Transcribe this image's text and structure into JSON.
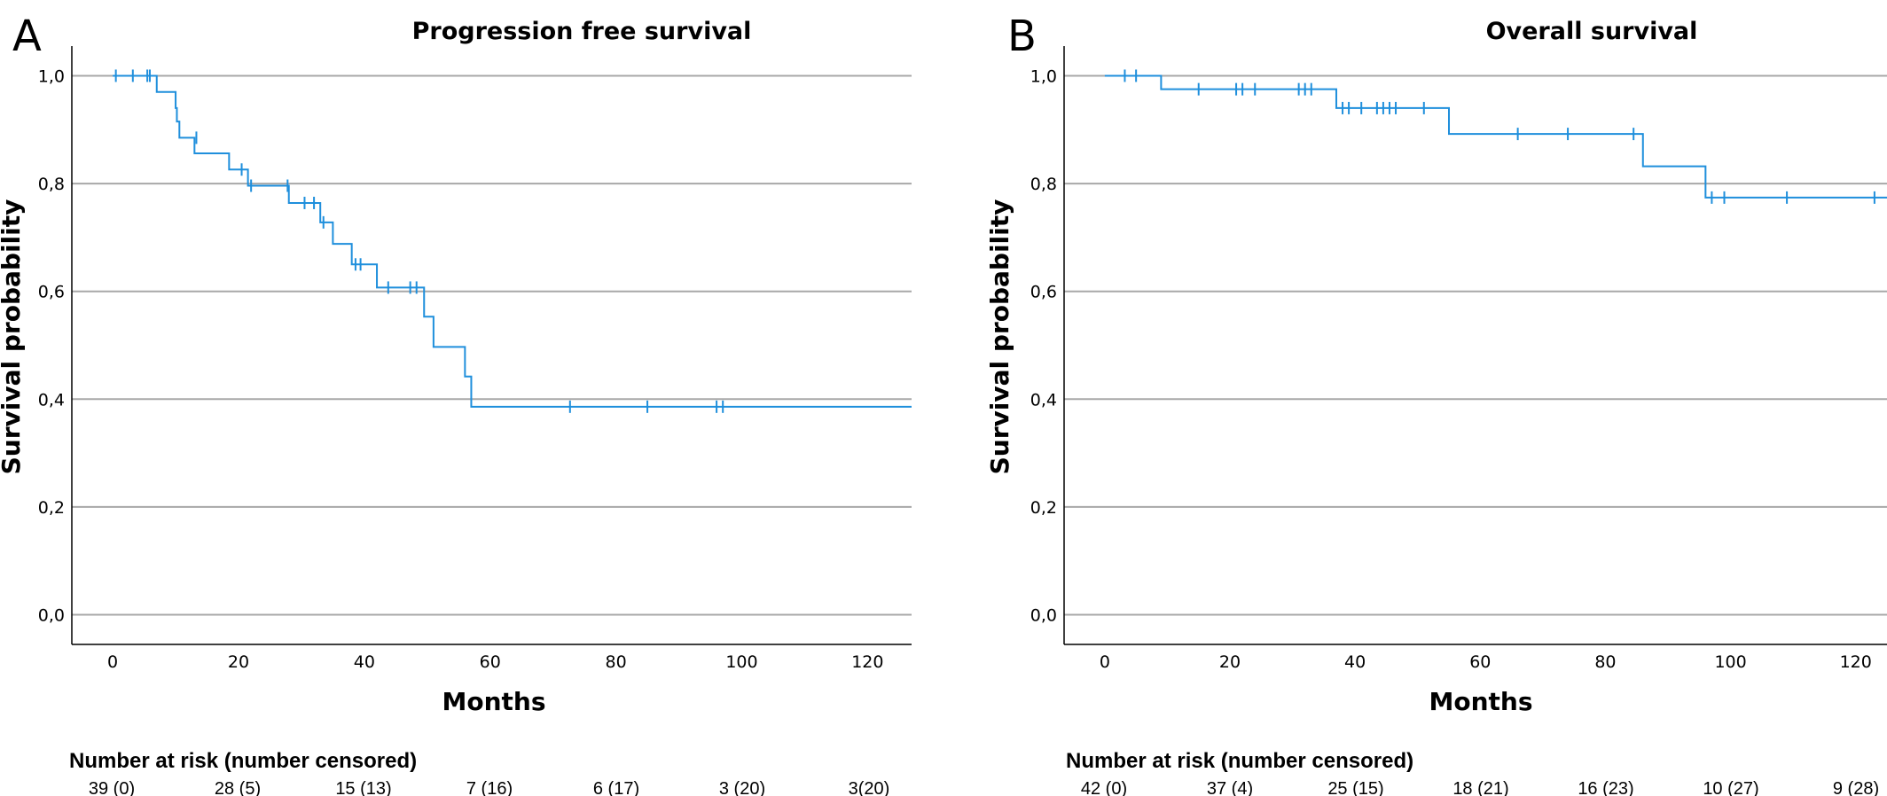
{
  "chart_data": [
    {
      "type": "line",
      "panel": "A",
      "title": "Progression free survival",
      "xlabel": "Months",
      "ylabel": "Survival probability",
      "xlim": [
        -6.5,
        127
      ],
      "ylim": [
        -0.055,
        1.055
      ],
      "x_ticks": [
        0,
        20,
        40,
        60,
        80,
        100,
        120
      ],
      "x_tick_labels": [
        "0",
        "20",
        "40",
        "60",
        "80",
        "100",
        "120"
      ],
      "y_ticks": [
        0,
        0.2,
        0.4,
        0.6,
        0.8,
        1.0
      ],
      "y_tick_labels": [
        "0,0",
        "0,2",
        "0,4",
        "0,6",
        "0,8",
        "1,0"
      ],
      "grid": "horizontal",
      "color": "#1f8fdc",
      "series": [
        {
          "steps": [
            [
              0,
              1.0
            ],
            [
              7,
              0.97
            ],
            [
              10,
              0.94
            ],
            [
              10.2,
              0.915
            ],
            [
              10.6,
              0.885
            ],
            [
              13,
              0.856
            ],
            [
              18.5,
              0.826
            ],
            [
              21.5,
              0.796
            ],
            [
              28,
              0.764
            ],
            [
              33,
              0.728
            ],
            [
              35,
              0.688
            ],
            [
              38,
              0.65
            ],
            [
              42,
              0.607
            ],
            [
              49.5,
              0.553
            ],
            [
              51,
              0.497
            ],
            [
              56,
              0.442
            ],
            [
              57,
              0.386
            ],
            [
              127,
              0.386
            ]
          ],
          "censored": [
            [
              0.5,
              1.0
            ],
            [
              3.2,
              1.0
            ],
            [
              5.5,
              1.0
            ],
            [
              5.9,
              1.0
            ],
            [
              13.3,
              0.885
            ],
            [
              20.5,
              0.826
            ],
            [
              22,
              0.796
            ],
            [
              27.8,
              0.796
            ],
            [
              30.5,
              0.764
            ],
            [
              32,
              0.764
            ],
            [
              33.5,
              0.728
            ],
            [
              38.6,
              0.65
            ],
            [
              39.4,
              0.65
            ],
            [
              43.8,
              0.607
            ],
            [
              47.3,
              0.607
            ],
            [
              48.3,
              0.607
            ],
            [
              72.7,
              0.386
            ],
            [
              85,
              0.386
            ],
            [
              96,
              0.386
            ],
            [
              97,
              0.386
            ]
          ]
        }
      ],
      "risk_table": {
        "title": "Number at risk (number censored)",
        "values": [
          "39 (0)",
          "28 (5)",
          "15 (13)",
          "7 (16)",
          "6 (17)",
          "3 (20)",
          "3(20)"
        ]
      }
    },
    {
      "type": "line",
      "panel": "B",
      "title": "Overall survival",
      "xlabel": "Months",
      "ylabel": "Survival probability",
      "xlim": [
        -6.5,
        125
      ],
      "ylim": [
        -0.055,
        1.055
      ],
      "x_ticks": [
        0,
        20,
        40,
        60,
        80,
        100,
        120
      ],
      "x_tick_labels": [
        "0",
        "20",
        "40",
        "60",
        "80",
        "100",
        "120"
      ],
      "y_ticks": [
        0,
        0.2,
        0.4,
        0.6,
        0.8,
        1.0
      ],
      "y_tick_labels": [
        "0,0",
        "0,2",
        "0,4",
        "0,6",
        "0,8",
        "1,0"
      ],
      "grid": "horizontal",
      "color": "#1f8fdc",
      "series": [
        {
          "steps": [
            [
              0,
              1.0
            ],
            [
              9,
              0.975
            ],
            [
              37,
              0.94
            ],
            [
              55,
              0.892
            ],
            [
              86,
              0.832
            ],
            [
              96,
              0.774
            ],
            [
              125,
              0.774
            ]
          ],
          "censored": [
            [
              3.2,
              1.0
            ],
            [
              5,
              1.0
            ],
            [
              15,
              0.975
            ],
            [
              21,
              0.975
            ],
            [
              22,
              0.975
            ],
            [
              24,
              0.975
            ],
            [
              31,
              0.975
            ],
            [
              32,
              0.975
            ],
            [
              33,
              0.975
            ],
            [
              38,
              0.94
            ],
            [
              39,
              0.94
            ],
            [
              41,
              0.94
            ],
            [
              43.5,
              0.94
            ],
            [
              44.5,
              0.94
            ],
            [
              45.5,
              0.94
            ],
            [
              46.5,
              0.94
            ],
            [
              51,
              0.94
            ],
            [
              66,
              0.892
            ],
            [
              74,
              0.892
            ],
            [
              84.5,
              0.892
            ],
            [
              97,
              0.774
            ],
            [
              99,
              0.774
            ],
            [
              109,
              0.774
            ],
            [
              123,
              0.774
            ]
          ]
        }
      ],
      "risk_table": {
        "title": "Number at risk (number censored)",
        "values": [
          "42 (0)",
          "37 (4)",
          "25 (15)",
          "18 (21)",
          "16 (23)",
          "10 (27)",
          "9 (28)"
        ]
      }
    }
  ]
}
